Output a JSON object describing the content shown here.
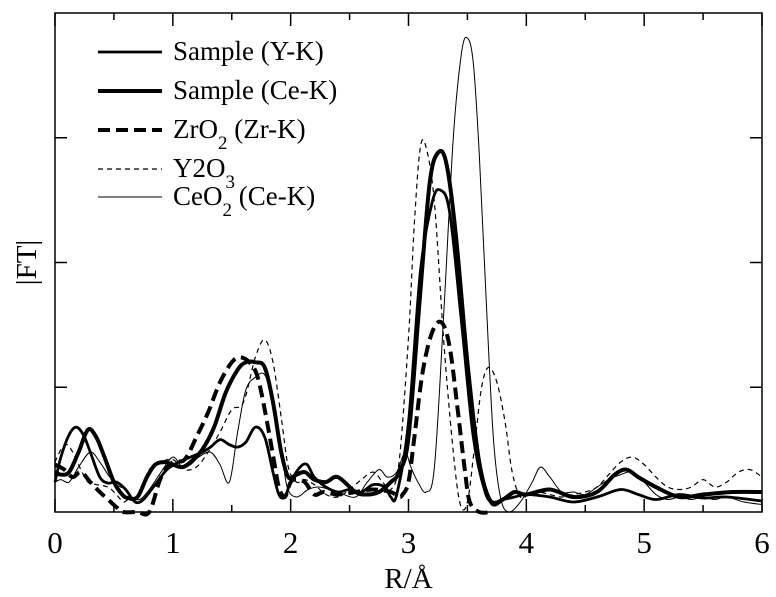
{
  "chart_data": {
    "type": "line",
    "xlabel": "R/Å",
    "ylabel": "|FT|",
    "xlim": [
      0,
      6
    ],
    "ylim": [
      0,
      1
    ],
    "x_ticks": [
      "0",
      "1",
      "2",
      "3",
      "4",
      "5",
      "6"
    ],
    "grid": false,
    "legend_position": "top-left",
    "series": [
      {
        "name": "Sample (Y-K)",
        "style": "medium-solid",
        "points": [
          [
            0,
            0.06
          ],
          [
            0.05,
            0.11
          ],
          [
            0.12,
            0.155
          ],
          [
            0.18,
            0.17
          ],
          [
            0.24,
            0.155
          ],
          [
            0.3,
            0.12
          ],
          [
            0.38,
            0.07
          ],
          [
            0.45,
            0.058
          ],
          [
            0.52,
            0.06
          ],
          [
            0.6,
            0.045
          ],
          [
            0.68,
            0.02
          ],
          [
            0.75,
            0.025
          ],
          [
            0.85,
            0.055
          ],
          [
            0.95,
            0.085
          ],
          [
            1.05,
            0.1
          ],
          [
            1.15,
            0.11
          ],
          [
            1.25,
            0.12
          ],
          [
            1.32,
            0.13
          ],
          [
            1.4,
            0.145
          ],
          [
            1.48,
            0.135
          ],
          [
            1.55,
            0.13
          ],
          [
            1.62,
            0.14
          ],
          [
            1.7,
            0.17
          ],
          [
            1.78,
            0.15
          ],
          [
            1.85,
            0.08
          ],
          [
            1.9,
            0.035
          ],
          [
            1.95,
            0.03
          ],
          [
            2.0,
            0.06
          ],
          [
            2.08,
            0.09
          ],
          [
            2.14,
            0.095
          ],
          [
            2.2,
            0.07
          ],
          [
            2.3,
            0.05
          ],
          [
            2.4,
            0.04
          ],
          [
            2.5,
            0.045
          ],
          [
            2.6,
            0.04
          ],
          [
            2.7,
            0.055
          ],
          [
            2.8,
            0.05
          ],
          [
            2.85,
            0.03
          ],
          [
            2.9,
            0.035
          ],
          [
            3.0,
            0.18
          ],
          [
            3.1,
            0.48
          ],
          [
            3.2,
            0.62
          ],
          [
            3.27,
            0.645
          ],
          [
            3.35,
            0.6
          ],
          [
            3.45,
            0.38
          ],
          [
            3.55,
            0.15
          ],
          [
            3.65,
            0.04
          ],
          [
            3.72,
            0.02
          ],
          [
            3.8,
            0.025
          ],
          [
            3.9,
            0.03
          ],
          [
            4.0,
            0.035
          ],
          [
            4.2,
            0.03
          ],
          [
            4.4,
            0.02
          ],
          [
            4.6,
            0.03
          ],
          [
            4.8,
            0.045
          ],
          [
            4.95,
            0.035
          ],
          [
            5.1,
            0.025
          ],
          [
            5.3,
            0.035
          ],
          [
            5.5,
            0.028
          ],
          [
            5.7,
            0.03
          ],
          [
            6.0,
            0.022
          ]
        ]
      },
      {
        "name": "Sample (Ce-K)",
        "style": "thick-solid",
        "points": [
          [
            0,
            0.08
          ],
          [
            0.05,
            0.075
          ],
          [
            0.12,
            0.08
          ],
          [
            0.2,
            0.12
          ],
          [
            0.28,
            0.165
          ],
          [
            0.35,
            0.15
          ],
          [
            0.42,
            0.11
          ],
          [
            0.5,
            0.06
          ],
          [
            0.57,
            0.035
          ],
          [
            0.62,
            0.028
          ],
          [
            0.7,
            0.03
          ],
          [
            0.78,
            0.07
          ],
          [
            0.85,
            0.095
          ],
          [
            0.93,
            0.1
          ],
          [
            1.0,
            0.095
          ],
          [
            1.08,
            0.09
          ],
          [
            1.15,
            0.1
          ],
          [
            1.25,
            0.125
          ],
          [
            1.35,
            0.17
          ],
          [
            1.45,
            0.24
          ],
          [
            1.55,
            0.285
          ],
          [
            1.62,
            0.3
          ],
          [
            1.7,
            0.3
          ],
          [
            1.78,
            0.29
          ],
          [
            1.85,
            0.22
          ],
          [
            1.92,
            0.12
          ],
          [
            1.98,
            0.07
          ],
          [
            2.05,
            0.075
          ],
          [
            2.12,
            0.08
          ],
          [
            2.2,
            0.065
          ],
          [
            2.3,
            0.06
          ],
          [
            2.4,
            0.07
          ],
          [
            2.55,
            0.04
          ],
          [
            2.65,
            0.035
          ],
          [
            2.75,
            0.04
          ],
          [
            2.85,
            0.06
          ],
          [
            2.92,
            0.08
          ],
          [
            3.0,
            0.15
          ],
          [
            3.1,
            0.44
          ],
          [
            3.18,
            0.66
          ],
          [
            3.25,
            0.72
          ],
          [
            3.32,
            0.7
          ],
          [
            3.4,
            0.56
          ],
          [
            3.5,
            0.3
          ],
          [
            3.6,
            0.1
          ],
          [
            3.7,
            0.02
          ],
          [
            3.8,
            0.025
          ],
          [
            3.9,
            0.04
          ],
          [
            4.0,
            0.035
          ],
          [
            4.2,
            0.045
          ],
          [
            4.4,
            0.03
          ],
          [
            4.6,
            0.04
          ],
          [
            4.75,
            0.075
          ],
          [
            4.85,
            0.085
          ],
          [
            4.95,
            0.07
          ],
          [
            5.1,
            0.05
          ],
          [
            5.3,
            0.03
          ],
          [
            5.5,
            0.035
          ],
          [
            5.75,
            0.04
          ],
          [
            6.0,
            0.04
          ]
        ]
      },
      {
        "name": "ZrO2 (Zr-K)",
        "style": "thick-dashed",
        "points": [
          [
            0,
            0.095
          ],
          [
            0.08,
            0.085
          ],
          [
            0.15,
            0.07
          ],
          [
            0.22,
            0.08
          ],
          [
            0.3,
            0.06
          ],
          [
            0.38,
            0.04
          ],
          [
            0.45,
            0.025
          ],
          [
            0.52,
            0.01
          ],
          [
            0.58,
            0.0
          ],
          [
            0.7,
            0.0
          ],
          [
            0.8,
            0.0
          ],
          [
            0.9,
            0.07
          ],
          [
            1.0,
            0.1
          ],
          [
            1.1,
            0.105
          ],
          [
            1.2,
            0.15
          ],
          [
            1.3,
            0.2
          ],
          [
            1.4,
            0.26
          ],
          [
            1.5,
            0.3
          ],
          [
            1.57,
            0.31
          ],
          [
            1.65,
            0.3
          ],
          [
            1.72,
            0.27
          ],
          [
            1.8,
            0.18
          ],
          [
            1.86,
            0.1
          ],
          [
            1.9,
            0.05
          ],
          [
            1.95,
            0.03
          ],
          [
            2.0,
            0.06
          ],
          [
            2.05,
            0.065
          ],
          [
            2.12,
            0.06
          ],
          [
            2.2,
            0.035
          ],
          [
            2.28,
            0.04
          ],
          [
            2.4,
            0.035
          ],
          [
            2.55,
            0.04
          ],
          [
            2.7,
            0.045
          ],
          [
            2.85,
            0.04
          ],
          [
            2.92,
            0.03
          ],
          [
            2.95,
            0.035
          ],
          [
            3.0,
            0.06
          ],
          [
            3.05,
            0.15
          ],
          [
            3.12,
            0.28
          ],
          [
            3.2,
            0.36
          ],
          [
            3.28,
            0.38
          ],
          [
            3.35,
            0.33
          ],
          [
            3.42,
            0.2
          ],
          [
            3.48,
            0.08
          ],
          [
            3.52,
            0.02
          ],
          [
            3.6,
            0.0
          ],
          [
            3.7,
            0.0
          ]
        ]
      },
      {
        "name": "Y2O3",
        "style": "thin-dashed",
        "points": [
          [
            0,
            0.1
          ],
          [
            0.05,
            0.125
          ],
          [
            0.1,
            0.135
          ],
          [
            0.15,
            0.12
          ],
          [
            0.22,
            0.085
          ],
          [
            0.28,
            0.06
          ],
          [
            0.35,
            0.055
          ],
          [
            0.45,
            0.05
          ],
          [
            0.52,
            0.035
          ],
          [
            0.58,
            0.02
          ],
          [
            0.62,
            0.025
          ],
          [
            0.7,
            0.03
          ],
          [
            0.8,
            0.085
          ],
          [
            0.9,
            0.1
          ],
          [
            1.0,
            0.105
          ],
          [
            1.1,
            0.085
          ],
          [
            1.2,
            0.09
          ],
          [
            1.3,
            0.12
          ],
          [
            1.4,
            0.16
          ],
          [
            1.5,
            0.205
          ],
          [
            1.6,
            0.22
          ],
          [
            1.7,
            0.31
          ],
          [
            1.78,
            0.345
          ],
          [
            1.85,
            0.3
          ],
          [
            1.92,
            0.19
          ],
          [
            1.98,
            0.09
          ],
          [
            2.05,
            0.06
          ],
          [
            2.12,
            0.065
          ],
          [
            2.2,
            0.055
          ],
          [
            2.3,
            0.035
          ],
          [
            2.4,
            0.03
          ],
          [
            2.5,
            0.045
          ],
          [
            2.6,
            0.065
          ],
          [
            2.7,
            0.08
          ],
          [
            2.78,
            0.06
          ],
          [
            2.85,
            0.045
          ],
          [
            2.92,
            0.1
          ],
          [
            3.0,
            0.35
          ],
          [
            3.05,
            0.58
          ],
          [
            3.1,
            0.73
          ],
          [
            3.15,
            0.73
          ],
          [
            3.22,
            0.62
          ],
          [
            3.3,
            0.34
          ],
          [
            3.38,
            0.12
          ],
          [
            3.44,
            0.015
          ],
          [
            3.5,
            0.02
          ],
          [
            3.56,
            0.13
          ],
          [
            3.62,
            0.25
          ],
          [
            3.68,
            0.29
          ],
          [
            3.75,
            0.26
          ],
          [
            3.82,
            0.18
          ],
          [
            3.88,
            0.08
          ],
          [
            3.95,
            0.03
          ],
          [
            4.02,
            0.035
          ],
          [
            4.1,
            0.04
          ],
          [
            4.2,
            0.035
          ],
          [
            4.3,
            0.03
          ],
          [
            4.4,
            0.035
          ],
          [
            4.5,
            0.04
          ],
          [
            4.6,
            0.05
          ],
          [
            4.7,
            0.075
          ],
          [
            4.8,
            0.1
          ],
          [
            4.9,
            0.11
          ],
          [
            5.0,
            0.095
          ],
          [
            5.1,
            0.07
          ],
          [
            5.2,
            0.05
          ],
          [
            5.3,
            0.045
          ],
          [
            5.4,
            0.05
          ],
          [
            5.5,
            0.065
          ],
          [
            5.6,
            0.05
          ],
          [
            5.7,
            0.06
          ],
          [
            5.8,
            0.08
          ],
          [
            5.9,
            0.085
          ],
          [
            6.0,
            0.07
          ]
        ]
      },
      {
        "name": "CeO2 (Ce-K)",
        "style": "thin-solid",
        "points": [
          [
            0,
            0.06
          ],
          [
            0.05,
            0.065
          ],
          [
            0.12,
            0.06
          ],
          [
            0.2,
            0.09
          ],
          [
            0.3,
            0.12
          ],
          [
            0.38,
            0.1
          ],
          [
            0.45,
            0.075
          ],
          [
            0.52,
            0.055
          ],
          [
            0.6,
            0.045
          ],
          [
            0.65,
            0.03
          ],
          [
            0.72,
            0.025
          ],
          [
            0.8,
            0.045
          ],
          [
            0.9,
            0.08
          ],
          [
            1.0,
            0.11
          ],
          [
            1.08,
            0.09
          ],
          [
            1.15,
            0.095
          ],
          [
            1.22,
            0.11
          ],
          [
            1.32,
            0.12
          ],
          [
            1.4,
            0.095
          ],
          [
            1.48,
            0.06
          ],
          [
            1.55,
            0.16
          ],
          [
            1.62,
            0.245
          ],
          [
            1.7,
            0.27
          ],
          [
            1.78,
            0.275
          ],
          [
            1.85,
            0.22
          ],
          [
            1.92,
            0.13
          ],
          [
            1.97,
            0.05
          ],
          [
            2.05,
            0.03
          ],
          [
            2.15,
            0.045
          ],
          [
            2.25,
            0.05
          ],
          [
            2.4,
            0.04
          ],
          [
            2.55,
            0.03
          ],
          [
            2.65,
            0.06
          ],
          [
            2.75,
            0.085
          ],
          [
            2.82,
            0.07
          ],
          [
            2.9,
            0.08
          ],
          [
            2.97,
            0.12
          ],
          [
            3.02,
            0.09
          ],
          [
            3.08,
            0.06
          ],
          [
            3.15,
            0.04
          ],
          [
            3.22,
            0.09
          ],
          [
            3.3,
            0.4
          ],
          [
            3.38,
            0.75
          ],
          [
            3.45,
            0.92
          ],
          [
            3.5,
            0.95
          ],
          [
            3.55,
            0.9
          ],
          [
            3.6,
            0.72
          ],
          [
            3.66,
            0.42
          ],
          [
            3.72,
            0.15
          ],
          [
            3.78,
            0.03
          ],
          [
            3.85,
            0.0
          ],
          [
            3.95,
            0.02
          ],
          [
            4.05,
            0.06
          ],
          [
            4.12,
            0.09
          ],
          [
            4.2,
            0.07
          ],
          [
            4.3,
            0.04
          ],
          [
            4.4,
            0.04
          ],
          [
            4.5,
            0.035
          ],
          [
            4.6,
            0.05
          ],
          [
            4.7,
            0.065
          ],
          [
            4.8,
            0.075
          ],
          [
            4.9,
            0.08
          ],
          [
            5.0,
            0.06
          ],
          [
            5.1,
            0.035
          ],
          [
            5.2,
            0.025
          ],
          [
            5.3,
            0.03
          ],
          [
            5.4,
            0.025
          ],
          [
            5.5,
            0.03
          ],
          [
            5.6,
            0.025
          ],
          [
            5.7,
            0.03
          ],
          [
            5.85,
            0.02
          ],
          [
            6.0,
            0.015
          ]
        ]
      }
    ]
  }
}
